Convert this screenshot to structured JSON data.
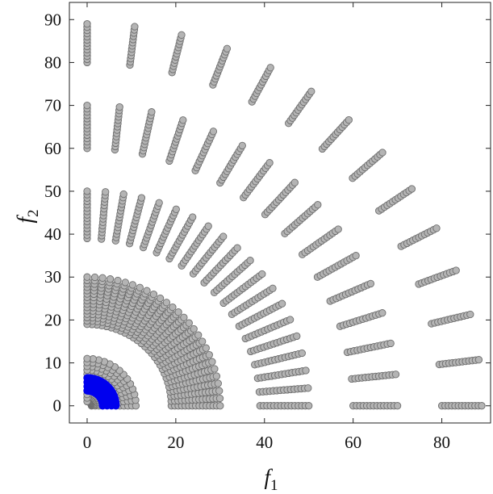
{
  "chart_data": {
    "type": "scatter",
    "title": "",
    "xlabel": {
      "symbol": "f",
      "subscript": "1"
    },
    "ylabel": {
      "symbol": "f",
      "subscript": "2"
    },
    "xlim": [
      -4,
      91
    ],
    "ylim": [
      -4,
      94
    ],
    "xticks": [
      0,
      20,
      40,
      60,
      80
    ],
    "yticks": [
      0,
      10,
      20,
      30,
      40,
      50,
      60,
      70,
      80,
      90
    ],
    "grid": false,
    "legend": "none",
    "series": [
      {
        "marker_color": "#b4b4b4",
        "edge_color": "#6e6e6e",
        "description_rays": "points form short radial segments lying on concentric quarter-arcs",
        "arcs": [
          {
            "r_inner": 1.0,
            "r_outer": 3.5,
            "rays": 12
          },
          {
            "r_inner": 6.5,
            "r_outer": 11.0,
            "rays": 14
          },
          {
            "r_inner": 19.0,
            "r_outer": 30.0,
            "rays": 28
          },
          {
            "r_inner": 39.0,
            "r_outer": 50.0,
            "rays": 20
          },
          {
            "r_inner": 60.0,
            "r_outer": 70.0,
            "rays": 16
          },
          {
            "r_inner": 80.0,
            "r_outer": 89.0,
            "rays": 14
          }
        ]
      },
      {
        "marker_color": "#0000ee",
        "edge_color": "#0000ee",
        "arcs": [
          {
            "r_inner": 3.5,
            "r_outer": 6.5,
            "rays": 40
          }
        ]
      }
    ]
  }
}
